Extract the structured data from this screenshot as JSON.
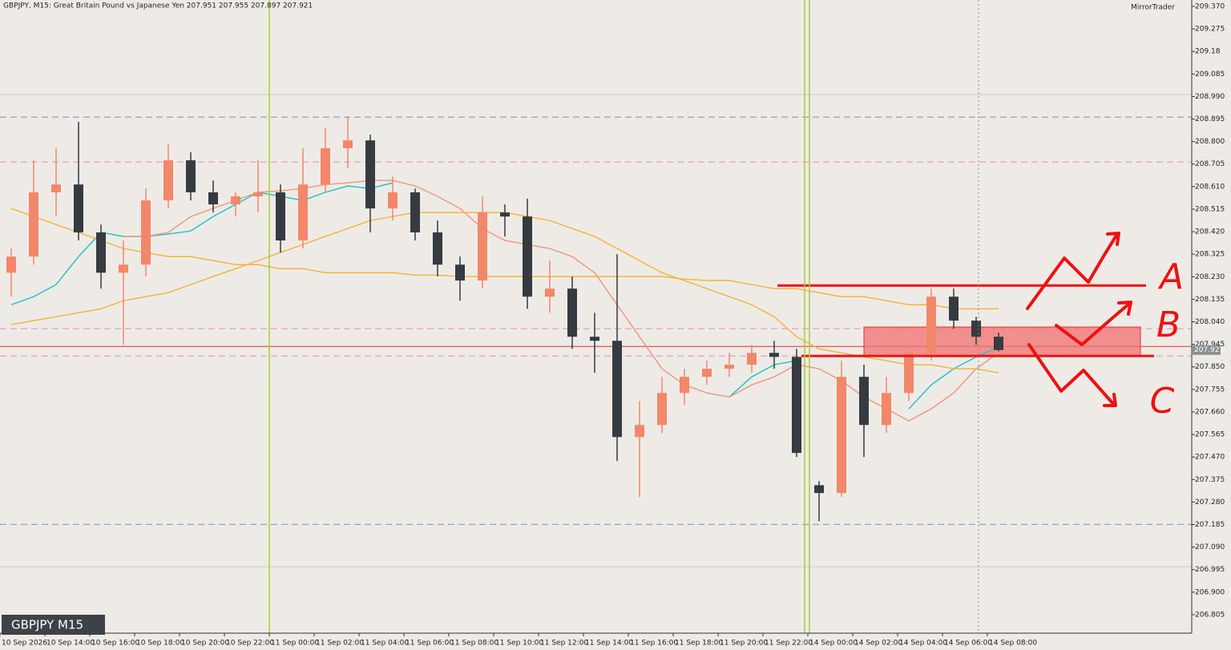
{
  "chart_data": {
    "type": "candlestick",
    "title": "GBPJPY, M15:  Great Britain Pound vs Japanese Yen  207.951 207.955 207.897 207.921",
    "broker": "MirrorTrader",
    "symbol_label": "GBPJPY M15",
    "categories": [
      "10 Sep 2026",
      null,
      "10 Sep 14:00",
      null,
      "10 Sep 16:00",
      null,
      "10 Sep 18:00",
      null,
      "10 Sep 20:00",
      null,
      "10 Sep 22:00",
      null,
      "11 Sep 00:00",
      null,
      "11 Sep 02:00",
      null,
      "11 Sep 04:00",
      null,
      "11 Sep 06:00",
      null,
      "11 Sep 08:00",
      null,
      "11 Sep 10:00",
      null,
      "11 Sep 12:00",
      null,
      "11 Sep 14:00",
      null,
      "11 Sep 16:00",
      null,
      "11 Sep 18:00",
      null,
      "11 Sep 20:00",
      null,
      "11 Sep 22:00",
      null,
      "14 Sep 00:00",
      null,
      "14 Sep 02:00",
      null,
      "14 Sep 04:00",
      null,
      "14 Sep 06:00",
      null,
      "14 Sep 08:00"
    ],
    "open": [
      208.247,
      208.315,
      208.586,
      208.619,
      208.417,
      208.247,
      208.281,
      208.552,
      208.721,
      208.586,
      208.535,
      208.569,
      208.586,
      208.383,
      208.619,
      208.772,
      208.805,
      208.518,
      208.586,
      208.417,
      208.281,
      208.214,
      208.501,
      208.484,
      208.146,
      208.18,
      207.977,
      207.96,
      207.554,
      207.605,
      207.74,
      207.808,
      207.842,
      207.859,
      207.909,
      207.892,
      207.351,
      207.318,
      207.808,
      207.605,
      207.74,
      207.909,
      208.146,
      208.045,
      207.977
    ],
    "high": [
      208.349,
      208.721,
      208.772,
      208.883,
      208.45,
      208.383,
      208.602,
      208.788,
      208.755,
      208.636,
      208.586,
      208.721,
      208.619,
      208.772,
      208.856,
      208.907,
      208.829,
      208.653,
      208.602,
      208.467,
      208.315,
      208.569,
      208.535,
      208.559,
      208.298,
      208.231,
      208.078,
      208.325,
      207.706,
      207.808,
      207.842,
      207.876,
      207.909,
      207.943,
      207.96,
      207.926,
      207.368,
      207.876,
      207.859,
      207.808,
      207.926,
      208.18,
      208.18,
      208.061,
      207.994
    ],
    "low": [
      208.146,
      208.281,
      208.484,
      208.383,
      208.18,
      207.943,
      208.231,
      208.518,
      208.552,
      208.501,
      208.484,
      208.501,
      208.332,
      208.349,
      208.586,
      208.687,
      208.417,
      208.467,
      208.383,
      208.231,
      208.129,
      208.18,
      208.4,
      208.095,
      208.078,
      207.926,
      207.825,
      207.453,
      207.301,
      207.571,
      207.69,
      207.774,
      207.808,
      207.825,
      207.842,
      207.47,
      207.199,
      207.301,
      207.47,
      207.571,
      207.706,
      207.876,
      208.011,
      207.943,
      207.916
    ],
    "close": [
      208.315,
      208.586,
      208.619,
      208.417,
      208.247,
      208.281,
      208.552,
      208.721,
      208.586,
      208.535,
      208.569,
      208.586,
      208.383,
      208.619,
      208.772,
      208.805,
      208.518,
      208.586,
      208.417,
      208.281,
      208.214,
      208.501,
      208.484,
      208.146,
      208.18,
      207.977,
      207.96,
      207.554,
      207.605,
      207.74,
      207.808,
      207.842,
      207.859,
      207.909,
      207.892,
      207.487,
      207.318,
      207.808,
      207.605,
      207.74,
      207.909,
      208.146,
      208.045,
      207.977,
      207.921
    ],
    "up_color": "#f2876a",
    "down_color": "#353b41",
    "indicators": [
      {
        "color": "#29c4c9",
        "values": [
          208.112,
          208.146,
          208.197,
          208.315,
          208.417,
          208.4,
          208.4,
          208.41,
          208.423,
          208.484,
          208.535,
          208.586,
          208.569,
          208.552,
          208.586,
          208.613,
          208.602,
          208.626,
          null,
          null,
          null,
          null,
          null,
          null,
          null,
          null,
          null,
          null,
          null,
          null,
          null,
          null,
          207.723,
          207.808,
          207.859,
          207.876,
          null,
          null,
          null,
          null,
          207.673,
          207.774,
          207.842,
          207.892,
          207.936
        ]
      },
      {
        "color": "#ee9a80",
        "values": [
          null,
          null,
          null,
          null,
          null,
          208.4,
          208.4,
          208.417,
          208.484,
          208.518,
          208.552,
          208.586,
          208.592,
          208.602,
          208.619,
          208.626,
          208.636,
          208.636,
          208.613,
          208.569,
          208.518,
          208.433,
          208.383,
          208.366,
          208.349,
          208.315,
          208.247,
          208.112,
          207.977,
          207.842,
          207.774,
          207.74,
          207.723,
          207.774,
          207.808,
          207.859,
          207.842,
          207.791,
          207.723,
          207.673,
          207.622,
          207.673,
          207.74,
          207.842,
          207.909
        ]
      },
      {
        "color": "#f5b53f",
        "values": [
          208.518,
          208.484,
          208.45,
          208.417,
          208.383,
          208.349,
          208.332,
          208.315,
          208.315,
          208.298,
          208.281,
          208.281,
          208.264,
          208.264,
          208.247,
          208.247,
          208.247,
          208.247,
          208.237,
          208.237,
          208.231,
          208.231,
          208.231,
          208.231,
          208.231,
          208.231,
          208.231,
          208.231,
          208.231,
          208.231,
          208.22,
          208.214,
          208.214,
          208.197,
          208.18,
          208.18,
          208.163,
          208.146,
          208.146,
          208.129,
          208.112,
          208.112,
          208.095,
          208.095,
          208.095
        ]
      },
      {
        "color": "#f5b53f",
        "values": [
          208.028,
          208.045,
          208.061,
          208.078,
          208.095,
          208.129,
          208.146,
          208.163,
          208.197,
          208.231,
          208.264,
          208.298,
          208.332,
          208.366,
          208.4,
          208.433,
          208.467,
          208.484,
          208.501,
          208.501,
          208.501,
          208.501,
          208.501,
          208.484,
          208.467,
          208.433,
          208.4,
          208.349,
          208.298,
          208.247,
          208.214,
          208.18,
          208.146,
          208.112,
          208.061,
          207.977,
          207.926,
          207.909,
          207.892,
          207.876,
          207.859,
          207.859,
          207.842,
          207.842,
          207.825
        ]
      }
    ],
    "levels": [
      {
        "value": 208.998,
        "color": "#c9c9c9",
        "dash": false
      },
      {
        "value": 208.903,
        "color": "#6f8fc8",
        "dash": true
      },
      {
        "value": 208.714,
        "color": "#e98ab9",
        "dash": true
      },
      {
        "value": 208.011,
        "color": "#e98ab9",
        "dash": true
      },
      {
        "value": 207.936,
        "color": "#e03030",
        "dash": false
      },
      {
        "value": 207.896,
        "color": "#e98ab9",
        "dash": true
      },
      {
        "value": 207.186,
        "color": "#6f8fc8",
        "dash": true
      },
      {
        "value": 207.007,
        "color": "#c9c9c9",
        "dash": false
      }
    ],
    "zone": [
      208.018,
      207.896
    ],
    "zone_color": "#f07070",
    "trend_levels": [
      208.193,
      207.896
    ],
    "last_price": 207.921,
    "annotations": [
      "A",
      "B",
      "C"
    ],
    "ylim": [
      206.727,
      209.397
    ],
    "yticks": [
      {
        "value": 209.37,
        "label": "209.370"
      },
      209.275,
      209.18,
      209.085,
      {
        "value": 208.99,
        "label": "208.990"
      },
      208.895,
      {
        "value": 208.8,
        "label": "208.800"
      },
      208.705,
      {
        "value": 208.61,
        "label": "208.610"
      },
      208.515,
      {
        "value": 208.42,
        "label": "208.420"
      },
      208.325,
      {
        "value": 208.23,
        "label": "208.230"
      },
      208.135,
      {
        "value": 208.04,
        "label": "208.040"
      },
      207.945,
      {
        "value": 207.85,
        "label": "207.850"
      },
      207.755,
      {
        "value": 207.66,
        "label": "207.660"
      },
      207.565,
      {
        "value": 207.47,
        "label": "207.470"
      },
      207.375,
      {
        "value": 207.28,
        "label": "207.280"
      },
      207.185,
      {
        "value": 207.09,
        "label": "207.090"
      },
      206.995,
      {
        "value": 206.9,
        "label": "206.900"
      },
      206.805
    ]
  }
}
